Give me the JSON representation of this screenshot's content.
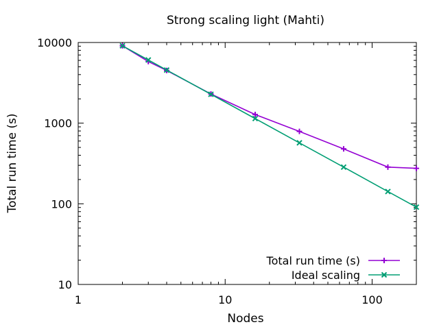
{
  "chart_data": {
    "type": "line",
    "title": "Strong scaling light (Mahti)",
    "xlabel": "Nodes",
    "ylabel": "Total run time (s)",
    "x_scale": "log",
    "y_scale": "log",
    "xlim": [
      1,
      200
    ],
    "ylim": [
      10,
      10000
    ],
    "x_ticks": [
      {
        "value": 1,
        "label": "1"
      },
      {
        "value": 10,
        "label": "10"
      },
      {
        "value": 100,
        "label": "100"
      }
    ],
    "y_ticks": [
      {
        "value": 10,
        "label": "10"
      },
      {
        "value": 100,
        "label": "100"
      },
      {
        "value": 1000,
        "label": "1000"
      },
      {
        "value": 10000,
        "label": "10000"
      }
    ],
    "grid": false,
    "legend_position": "bottom-right",
    "series": [
      {
        "name": "Total run time (s)",
        "color": "#9400d3",
        "marker": "plus-icon",
        "x": [
          2,
          3,
          4,
          8,
          16,
          32,
          64,
          128,
          200
        ],
        "y": [
          9100,
          5800,
          4500,
          2300,
          1280,
          790,
          480,
          285,
          275
        ]
      },
      {
        "name": "Ideal scaling",
        "color": "#009e73",
        "marker": "cross-icon",
        "x": [
          2,
          3,
          4,
          8,
          16,
          32,
          64,
          128,
          200
        ],
        "y": [
          9100,
          6070,
          4550,
          2280,
          1140,
          570,
          285,
          142,
          91
        ]
      }
    ]
  }
}
